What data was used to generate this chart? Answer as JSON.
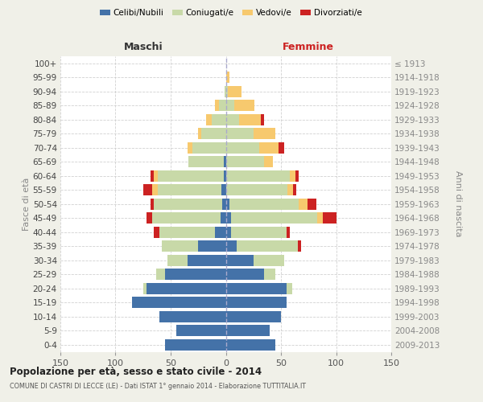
{
  "age_groups": [
    "0-4",
    "5-9",
    "10-14",
    "15-19",
    "20-24",
    "25-29",
    "30-34",
    "35-39",
    "40-44",
    "45-49",
    "50-54",
    "55-59",
    "60-64",
    "65-69",
    "70-74",
    "75-79",
    "80-84",
    "85-89",
    "90-94",
    "95-99",
    "100+"
  ],
  "birth_years": [
    "2009-2013",
    "2004-2008",
    "1999-2003",
    "1994-1998",
    "1989-1993",
    "1984-1988",
    "1979-1983",
    "1974-1978",
    "1969-1973",
    "1964-1968",
    "1959-1963",
    "1954-1958",
    "1949-1953",
    "1944-1948",
    "1939-1943",
    "1934-1938",
    "1929-1933",
    "1924-1928",
    "1919-1923",
    "1914-1918",
    "≤ 1913"
  ],
  "maschi": {
    "celibi": [
      55,
      45,
      60,
      85,
      72,
      55,
      35,
      25,
      10,
      5,
      3,
      4,
      2,
      2,
      0,
      0,
      0,
      0,
      0,
      0,
      0
    ],
    "coniugati": [
      0,
      0,
      0,
      0,
      3,
      8,
      18,
      33,
      50,
      62,
      62,
      58,
      60,
      32,
      30,
      22,
      13,
      6,
      1,
      0,
      0
    ],
    "vedovi": [
      0,
      0,
      0,
      0,
      0,
      0,
      0,
      0,
      0,
      0,
      0,
      5,
      3,
      0,
      5,
      3,
      5,
      4,
      0,
      0,
      0
    ],
    "divorziati": [
      0,
      0,
      0,
      0,
      0,
      0,
      0,
      0,
      5,
      5,
      3,
      8,
      3,
      0,
      0,
      0,
      0,
      0,
      0,
      0,
      0
    ]
  },
  "femmine": {
    "nubili": [
      45,
      40,
      50,
      55,
      55,
      35,
      25,
      10,
      5,
      5,
      3,
      0,
      0,
      0,
      0,
      0,
      0,
      0,
      0,
      0,
      0
    ],
    "coniugate": [
      0,
      0,
      0,
      0,
      5,
      10,
      28,
      55,
      50,
      78,
      63,
      56,
      58,
      35,
      30,
      25,
      12,
      8,
      2,
      0,
      0
    ],
    "vedove": [
      0,
      0,
      0,
      0,
      0,
      0,
      0,
      0,
      0,
      5,
      8,
      5,
      5,
      8,
      18,
      20,
      20,
      18,
      12,
      3,
      0
    ],
    "divorziate": [
      0,
      0,
      0,
      0,
      0,
      0,
      0,
      3,
      3,
      12,
      8,
      3,
      3,
      0,
      5,
      0,
      3,
      0,
      0,
      0,
      0
    ]
  },
  "colors": {
    "celibi": "#4472a8",
    "coniugati": "#c8d9a8",
    "vedovi": "#f7c96e",
    "divorziati": "#cc2222"
  },
  "xlim": 150,
  "title": "Popolazione per età, sesso e stato civile - 2014",
  "subtitle": "COMUNE DI CASTRI DI LECCE (LE) - Dati ISTAT 1° gennaio 2014 - Elaborazione TUTTITALIA.IT",
  "xlabel_left": "Maschi",
  "xlabel_right": "Femmine",
  "ylabel_left": "Fasce di età",
  "ylabel_right": "Anni di nascita",
  "bg_color": "#f0f0e8",
  "plot_bg": "#ffffff",
  "grid_color": "#cccccc",
  "center_line_color": "#aaaacc"
}
